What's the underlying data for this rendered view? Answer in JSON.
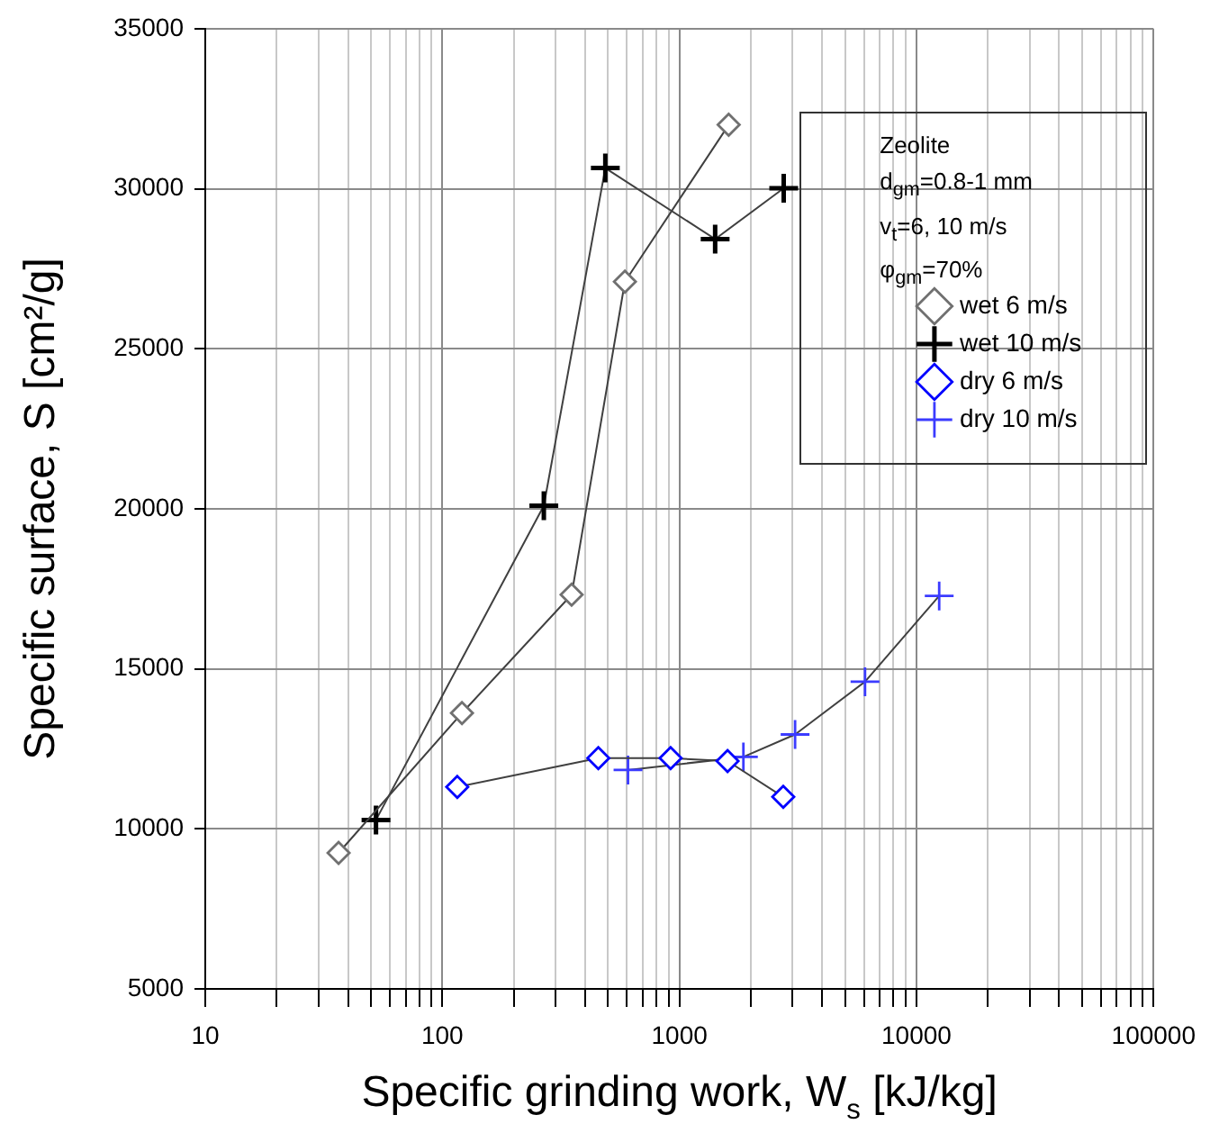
{
  "chart_data": {
    "type": "line",
    "xlabel": "Specific grinding work, W$_{s}$ [kJ/kg]",
    "ylabel": "Specific surface, S [cm²/g]",
    "annotations": [
      "Zeolite",
      "d$_{gm}$=0.8-1 mm",
      "v$_{t}$=6, 10 m/s",
      "φ$_{gm}$=70%"
    ],
    "log": "x",
    "grid": true,
    "legend": "top right",
    "xlim": [
      10,
      100000
    ],
    "xticks": [
      10,
      {
        "value": 20,
        "label": null
      },
      {
        "value": 30,
        "label": null
      },
      {
        "value": 40,
        "label": null
      },
      {
        "value": 50,
        "label": null
      },
      {
        "value": 60,
        "label": null
      },
      {
        "value": 70,
        "label": null
      },
      {
        "value": 80,
        "label": null
      },
      {
        "value": 90,
        "label": null
      },
      100,
      {
        "value": 200,
        "label": null
      },
      {
        "value": 300,
        "label": null
      },
      {
        "value": 400,
        "label": null
      },
      {
        "value": 500,
        "label": null
      },
      {
        "value": 600,
        "label": null
      },
      {
        "value": 700,
        "label": null
      },
      {
        "value": 800,
        "label": null
      },
      {
        "value": 900,
        "label": null
      },
      1000,
      {
        "value": 2000,
        "label": null
      },
      {
        "value": 3000,
        "label": null
      },
      {
        "value": 4000,
        "label": null
      },
      {
        "value": 5000,
        "label": null
      },
      {
        "value": 6000,
        "label": null
      },
      {
        "value": 7000,
        "label": null
      },
      {
        "value": 8000,
        "label": null
      },
      {
        "value": 9000,
        "label": null
      },
      10000,
      {
        "value": 20000,
        "label": null
      },
      {
        "value": 30000,
        "label": null
      },
      {
        "value": 40000,
        "label": null
      },
      {
        "value": 50000,
        "label": null
      },
      {
        "value": 60000,
        "label": null
      },
      {
        "value": 70000,
        "label": null
      },
      {
        "value": 80000,
        "label": null
      },
      {
        "value": 90000,
        "label": null
      },
      100000
    ],
    "ylim": [
      5000,
      35000
    ],
    "yticks": [
      5000,
      10000,
      15000,
      20000,
      25000,
      30000,
      35000
    ],
    "series": [
      {
        "name": "wet 6 m/s",
        "color": "#707070",
        "marker": "diamond",
        "x": [
          36.5,
          121,
          351,
          589,
          1614
        ],
        "values": [
          9250,
          13620,
          17320,
          27100,
          32000
        ]
      },
      {
        "name": "wet 10 m/s",
        "color": "#000000",
        "marker": "cross",
        "x": [
          52.5,
          268,
          487,
          1415,
          2754
        ],
        "values": [
          10280,
          20100,
          30650,
          28430,
          30020
        ]
      },
      {
        "name": "dry 6 m/s",
        "color": "#0000ff",
        "marker": "diamond",
        "x": [
          115.6,
          455,
          918,
          1596,
          2742
        ],
        "values": [
          11310,
          12210,
          12210,
          12120,
          11000
        ]
      },
      {
        "name": "dry 10 m/s",
        "color": "#3b3bff",
        "marker": "cross",
        "x": [
          607,
          1862,
          3076,
          6067,
          12470
        ],
        "values": [
          11840,
          12250,
          12950,
          14600,
          17280
        ]
      }
    ]
  }
}
